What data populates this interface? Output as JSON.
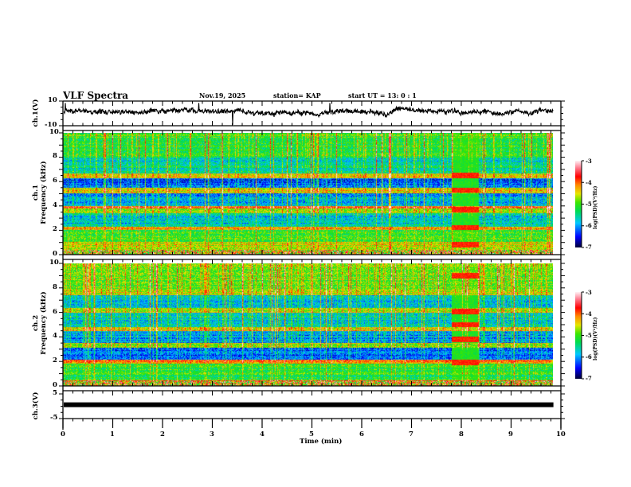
{
  "header": {
    "title": "VLF Spectra",
    "date": "Nov.19, 2025",
    "station": "station= KAP",
    "start": "start  UT  =   13: 0  : 1"
  },
  "colors": {
    "trace": "#000000",
    "axis": "#000000",
    "background": "#ffffff"
  },
  "chart_data": [
    {
      "type": "line",
      "name": "ch1-waveform",
      "ylabel": "ch.1(V)",
      "ylim": [
        -10,
        10
      ],
      "yticks": [
        "10",
        "-10"
      ],
      "xlim": [
        0,
        10
      ],
      "x_end": 9.85,
      "baseline": 2,
      "noise_amplitude": 3.5
    },
    {
      "type": "heatmap",
      "name": "ch1-spectrogram",
      "ylabel_top": "ch.1",
      "ylabel": "Frequency  (kHz)",
      "ylim": [
        0,
        10
      ],
      "yticks": [
        "0",
        "2",
        "4",
        "6",
        "8",
        "10"
      ],
      "xlim": [
        0,
        10
      ],
      "x_end": 9.85,
      "colorbar": {
        "label": "log(PSD)(V²/Hz)",
        "range": [
          -7,
          -3
        ],
        "ticks": [
          "-3",
          "-4",
          "-5",
          "-6",
          "-7"
        ]
      },
      "bands": [
        {
          "f": [
            0.0,
            0.3
          ],
          "level": -3.9
        },
        {
          "f": [
            0.3,
            1.0
          ],
          "level": -4.6
        },
        {
          "f": [
            1.0,
            2.0
          ],
          "level": -5.1
        },
        {
          "f": [
            2.0,
            2.3
          ],
          "level": -4.2
        },
        {
          "f": [
            2.3,
            3.4
          ],
          "level": -5.8
        },
        {
          "f": [
            3.4,
            3.8
          ],
          "level": -4.7
        },
        {
          "f": [
            3.8,
            4.0
          ],
          "level": -4.0
        },
        {
          "f": [
            4.0,
            5.0
          ],
          "level": -6.0
        },
        {
          "f": [
            5.0,
            5.5
          ],
          "level": -4.5
        },
        {
          "f": [
            5.5,
            6.3
          ],
          "level": -6.3
        },
        {
          "f": [
            6.3,
            6.7
          ],
          "level": -4.5
        },
        {
          "f": [
            6.7,
            8.0
          ],
          "level": -5.6
        },
        {
          "f": [
            8.0,
            10.0
          ],
          "level": -5.1
        }
      ],
      "burst": {
        "t": [
          7.8,
          8.35
        ],
        "lines_khz": [
          0.8,
          2.2,
          3.7,
          5.3,
          6.5
        ],
        "level": -3.8
      }
    },
    {
      "type": "heatmap",
      "name": "ch2-spectrogram",
      "ylabel_top": "ch.2",
      "ylabel": "Frequency  (kHz)",
      "ylim": [
        0,
        10
      ],
      "yticks": [
        "0",
        "2",
        "4",
        "6",
        "8",
        "10"
      ],
      "xlim": [
        0,
        10
      ],
      "x_end": 9.85,
      "colorbar": {
        "label": "log(PSD)(V²/Hz)",
        "range": [
          -7,
          -3
        ],
        "ticks": [
          "-3",
          "-4",
          "-5",
          "-6",
          "-7"
        ]
      },
      "bands": [
        {
          "f": [
            0.0,
            0.4
          ],
          "level": -3.9
        },
        {
          "f": [
            0.4,
            1.8
          ],
          "level": -5.2
        },
        {
          "f": [
            1.8,
            2.1
          ],
          "level": -4.2
        },
        {
          "f": [
            2.1,
            3.1
          ],
          "level": -6.2
        },
        {
          "f": [
            3.1,
            3.5
          ],
          "level": -4.8
        },
        {
          "f": [
            3.5,
            4.5
          ],
          "level": -6.0
        },
        {
          "f": [
            4.5,
            4.8
          ],
          "level": -4.4
        },
        {
          "f": [
            4.8,
            6.0
          ],
          "level": -5.7
        },
        {
          "f": [
            6.0,
            6.4
          ],
          "level": -4.7
        },
        {
          "f": [
            6.4,
            7.4
          ],
          "level": -5.8
        },
        {
          "f": [
            7.4,
            7.8
          ],
          "level": -4.6
        },
        {
          "f": [
            7.8,
            10.0
          ],
          "level": -4.9
        }
      ],
      "burst": {
        "t": [
          7.8,
          8.35
        ],
        "lines_khz": [
          1.9,
          3.8,
          5.0,
          6.1,
          9.0
        ],
        "level": -3.8
      }
    },
    {
      "type": "line",
      "name": "ch3-waveform",
      "ylabel": "ch.3(V)",
      "ylim": [
        -5,
        5
      ],
      "yticks": [
        "5",
        "-5"
      ],
      "xlim": [
        0,
        10
      ],
      "x_end": 9.85,
      "baseline": 0.6,
      "noise_amplitude": 0.35
    }
  ],
  "xaxis": {
    "label": "Time  (min)",
    "ticks": [
      "0",
      "1",
      "2",
      "3",
      "4",
      "5",
      "6",
      "7",
      "8",
      "9",
      "10"
    ]
  }
}
